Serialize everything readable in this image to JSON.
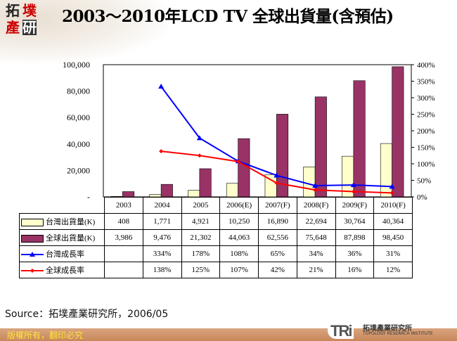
{
  "title": "2003～2010年LCD TV 全球出貨量(含預估)",
  "logo": {
    "chars": [
      "拓",
      "墣",
      "產",
      "研"
    ]
  },
  "source": "Source：拓墣產業研究所，2006/05",
  "footer": {
    "copyright": "版權所有，翻印必究",
    "brand_short": "TRi",
    "brand_cn": "拓墣產業研究所",
    "brand_en": "TOPOLOGY RESEARCH INSTITUTE"
  },
  "colors": {
    "taiwan_bar": "#FFFFCC",
    "global_bar": "#993366",
    "taiwan_line": "#0000FF",
    "global_line": "#FF0000"
  },
  "chart_data": {
    "type": "bar",
    "title": "2003～2010年LCD TV 全球出貨量(含預估)",
    "categories": [
      "2003",
      "2004",
      "2005",
      "2006(E)",
      "2007(F)",
      "2008(F)",
      "2009(F)",
      "2010(F)"
    ],
    "y_left": {
      "ylim": [
        0,
        100000
      ],
      "ticks": [
        "-",
        "20,000",
        "40,000",
        "60,000",
        "80,000",
        "100,000"
      ]
    },
    "y_right": {
      "ylim": [
        0,
        400
      ],
      "ticks": [
        "0%",
        "50%",
        "100%",
        "150%",
        "200%",
        "250%",
        "300%",
        "350%",
        "400%"
      ]
    },
    "series": [
      {
        "name": "台灣出貨量(K)",
        "type": "bar",
        "axis": "left",
        "values": [
          408,
          1771,
          4921,
          10250,
          16890,
          22694,
          30764,
          40364
        ],
        "labels": [
          "408",
          "1,771",
          "4,921",
          "10,250",
          "16,890",
          "22,694",
          "30,764",
          "40,364"
        ]
      },
      {
        "name": "全球出貨量(K)",
        "type": "bar",
        "axis": "left",
        "values": [
          3986,
          9476,
          21302,
          44063,
          62556,
          75648,
          87898,
          98450
        ],
        "labels": [
          "3,986",
          "9,476",
          "21,302",
          "44,063",
          "62,556",
          "75,648",
          "87,898",
          "98,450"
        ]
      },
      {
        "name": "台灣成長率",
        "type": "line",
        "axis": "right",
        "values": [
          null,
          334,
          178,
          108,
          65,
          34,
          36,
          31
        ],
        "labels": [
          "",
          "334%",
          "178%",
          "108%",
          "65%",
          "34%",
          "36%",
          "31%"
        ]
      },
      {
        "name": "全球成長率",
        "type": "line",
        "axis": "right",
        "values": [
          null,
          138,
          125,
          107,
          42,
          21,
          16,
          12
        ],
        "labels": [
          "",
          "138%",
          "125%",
          "107%",
          "42%",
          "21%",
          "16%",
          "12%"
        ]
      }
    ],
    "grid": false,
    "legend": "data-table-below"
  }
}
